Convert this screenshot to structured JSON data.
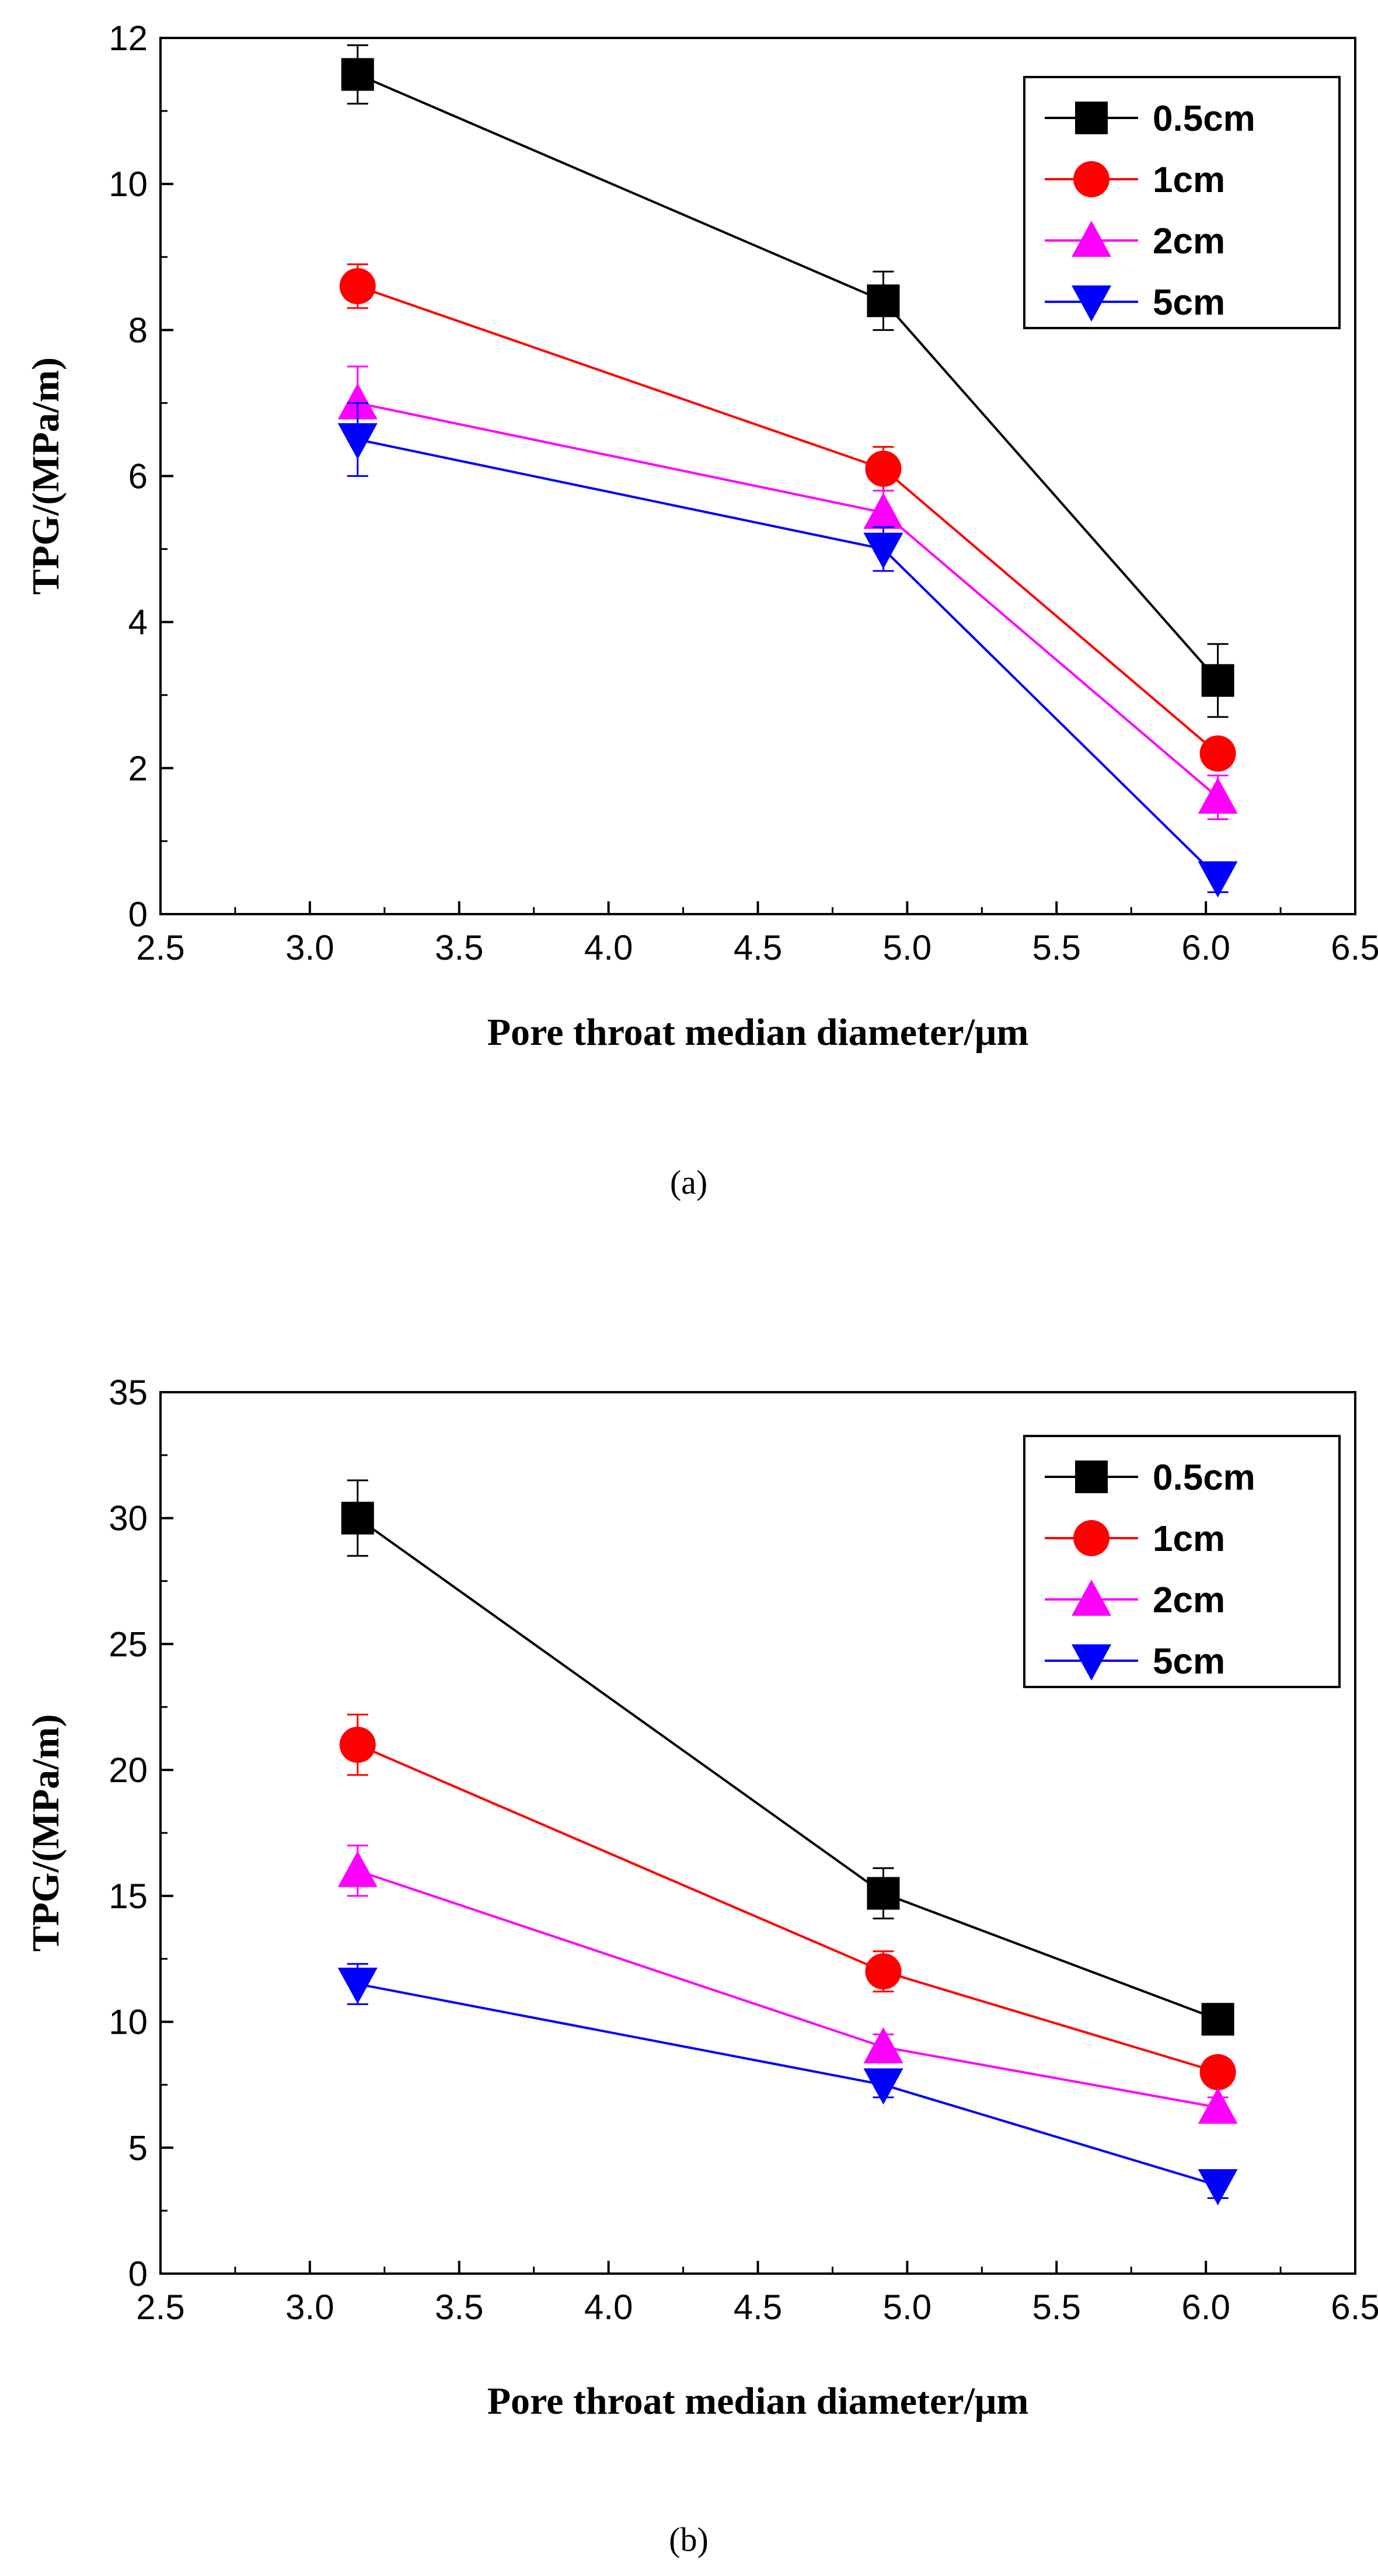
{
  "chart_data": [
    {
      "type": "line",
      "panel_label": "(a)",
      "xlabel": "Pore throat median diameter/μm",
      "ylabel": "TPG/(MPa/m)",
      "xlim": [
        2.5,
        6.5
      ],
      "ylim": [
        0,
        12
      ],
      "x_ticks": [
        "2.5",
        "3.0",
        "3.5",
        "4.0",
        "4.5",
        "5.0",
        "5.5",
        "6.0",
        "6.5"
      ],
      "y_ticks": [
        "0",
        "2",
        "4",
        "6",
        "8",
        "10",
        "12"
      ],
      "x": [
        3.16,
        4.92,
        6.04
      ],
      "legend_position": "top-right",
      "grid": false,
      "series": [
        {
          "name": "0.5cm",
          "color": "#000000",
          "marker": "square",
          "values": [
            11.5,
            8.4,
            3.2
          ],
          "errors": [
            0.4,
            0.4,
            0.5
          ]
        },
        {
          "name": "1cm",
          "color": "#ff0000",
          "marker": "circle",
          "values": [
            8.6,
            6.1,
            2.2
          ],
          "errors": [
            0.3,
            0.3,
            0.1
          ]
        },
        {
          "name": "2cm",
          "color": "#ff00ff",
          "marker": "triangle-up",
          "values": [
            7.0,
            5.5,
            1.6
          ],
          "errors": [
            0.5,
            0.3,
            0.3
          ]
        },
        {
          "name": "5cm",
          "color": "#0000ff",
          "marker": "triangle-down",
          "values": [
            6.5,
            5.0,
            0.5
          ],
          "errors": [
            0.5,
            0.3,
            0.2
          ]
        }
      ]
    },
    {
      "type": "line",
      "panel_label": "(b)",
      "xlabel": "Pore throat median diameter/μm",
      "ylabel": "TPG/(MPa/m)",
      "xlim": [
        2.5,
        6.5
      ],
      "ylim": [
        0,
        35
      ],
      "x_ticks": [
        "2.5",
        "3.0",
        "3.5",
        "4.0",
        "4.5",
        "5.0",
        "5.5",
        "6.0",
        "6.5"
      ],
      "y_ticks": [
        "0",
        "5",
        "10",
        "15",
        "20",
        "25",
        "30",
        "35"
      ],
      "x": [
        3.16,
        4.92,
        6.04
      ],
      "legend_position": "top-right",
      "grid": false,
      "series": [
        {
          "name": "0.5cm",
          "color": "#000000",
          "marker": "square",
          "values": [
            30.0,
            15.1,
            10.1
          ],
          "errors": [
            1.5,
            1.0,
            0.4
          ]
        },
        {
          "name": "1cm",
          "color": "#ff0000",
          "marker": "circle",
          "values": [
            21.0,
            12.0,
            8.0
          ],
          "errors": [
            1.2,
            0.8,
            0.3
          ]
        },
        {
          "name": "2cm",
          "color": "#ff00ff",
          "marker": "triangle-up",
          "values": [
            16.0,
            9.0,
            6.6
          ],
          "errors": [
            1.0,
            0.5,
            0.4
          ]
        },
        {
          "name": "5cm",
          "color": "#0000ff",
          "marker": "triangle-down",
          "values": [
            11.5,
            7.5,
            3.5
          ],
          "errors": [
            0.8,
            0.5,
            0.5
          ]
        }
      ]
    }
  ]
}
